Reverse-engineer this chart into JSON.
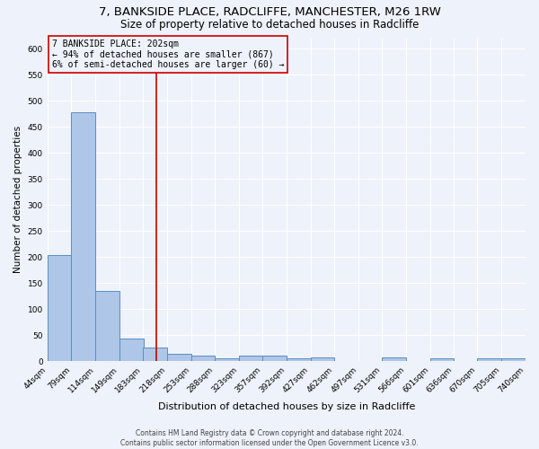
{
  "title": "7, BANKSIDE PLACE, RADCLIFFE, MANCHESTER, M26 1RW",
  "subtitle": "Size of property relative to detached houses in Radcliffe",
  "xlabel": "Distribution of detached houses by size in Radcliffe",
  "ylabel": "Number of detached properties",
  "footer_line1": "Contains HM Land Registry data © Crown copyright and database right 2024.",
  "footer_line2": "Contains public sector information licensed under the Open Government Licence v3.0.",
  "bin_edges": [
    44,
    79,
    114,
    149,
    183,
    218,
    253,
    288,
    323,
    357,
    392,
    427,
    462,
    497,
    531,
    566,
    601,
    636,
    670,
    705,
    740
  ],
  "bar_heights": [
    203,
    478,
    135,
    44,
    26,
    14,
    11,
    5,
    10,
    10,
    5,
    8,
    0,
    0,
    8,
    0,
    5,
    0,
    5,
    5
  ],
  "bar_color": "#aec6e8",
  "bar_edge_color": "#5a8fc0",
  "red_line_x": 202,
  "annotation_line1": "7 BANKSIDE PLACE: 202sqm",
  "annotation_line2": "← 94% of detached houses are smaller (867)",
  "annotation_line3": "6% of semi-detached houses are larger (60) →",
  "annotation_box_color": "#cc0000",
  "ylim": [
    0,
    620
  ],
  "yticks": [
    0,
    50,
    100,
    150,
    200,
    250,
    300,
    350,
    400,
    450,
    500,
    550,
    600
  ],
  "bg_color": "#eef2fa",
  "grid_color": "#ffffff",
  "title_fontsize": 9.5,
  "subtitle_fontsize": 8.5,
  "xlabel_fontsize": 8,
  "ylabel_fontsize": 7.5,
  "tick_fontsize": 6.5,
  "footer_fontsize": 5.5,
  "annot_fontsize": 7
}
